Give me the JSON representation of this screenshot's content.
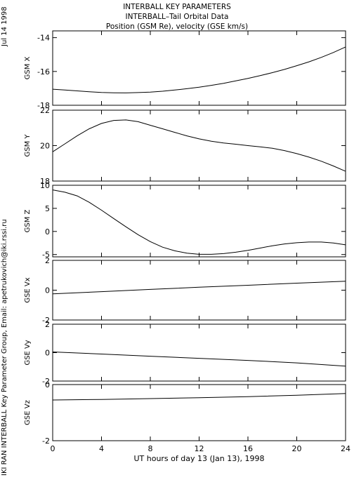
{
  "header": {
    "date": "Jul 14 1998",
    "title_lines": [
      "INTERBALL KEY PARAMETERS",
      "INTERBALL–Tail Orbital Data",
      "Position (GSM Re), velocity (GSE km/s)"
    ]
  },
  "credit": "IKI RAN INTERBALL Key Parameter Group, Email: apetrukovich@iki.rssi.ru",
  "chart_data": {
    "type": "line",
    "x_label": "UT hours of day  13 (Jan 13), 1998",
    "x_ticks": [
      0,
      4,
      8,
      12,
      16,
      20,
      24
    ],
    "xlim": [
      0,
      24
    ],
    "grid": false,
    "panels": [
      {
        "ylabel": "GSM X",
        "ylim": [
          -18,
          -13.6
        ],
        "y_ticks": [
          -18,
          -16,
          -14
        ],
        "series": [
          {
            "x": [
              0,
              1,
              2,
              3,
              4,
              5,
              6,
              7,
              8,
              9,
              10,
              11,
              12,
              13,
              14,
              15,
              16,
              17,
              18,
              19,
              20,
              21,
              22,
              23,
              24
            ],
            "y": [
              -17.05,
              -17.1,
              -17.15,
              -17.2,
              -17.24,
              -17.26,
              -17.27,
              -17.25,
              -17.22,
              -17.17,
              -17.1,
              -17.02,
              -16.93,
              -16.82,
              -16.7,
              -16.56,
              -16.41,
              -16.25,
              -16.07,
              -15.88,
              -15.66,
              -15.43,
              -15.17,
              -14.88,
              -14.55
            ]
          }
        ]
      },
      {
        "ylabel": "GSM Y",
        "ylim": [
          18,
          22
        ],
        "y_ticks": [
          18,
          20,
          22
        ],
        "series": [
          {
            "x": [
              0,
              1,
              2,
              3,
              4,
              5,
              6,
              7,
              8,
              9,
              10,
              11,
              12,
              13,
              14,
              15,
              16,
              17,
              18,
              19,
              20,
              21,
              22,
              23,
              24
            ],
            "y": [
              19.65,
              20.1,
              20.55,
              20.95,
              21.25,
              21.42,
              21.45,
              21.35,
              21.15,
              20.95,
              20.75,
              20.55,
              20.38,
              20.25,
              20.15,
              20.08,
              20.0,
              19.93,
              19.85,
              19.72,
              19.55,
              19.35,
              19.12,
              18.85,
              18.55
            ]
          }
        ]
      },
      {
        "ylabel": "GSM Z",
        "ylim": [
          -5.5,
          10
        ],
        "y_ticks": [
          -5,
          0,
          5,
          10
        ],
        "series": [
          {
            "x": [
              0,
              1,
              2,
              3,
              4,
              5,
              6,
              7,
              8,
              9,
              10,
              11,
              12,
              13,
              14,
              15,
              16,
              17,
              18,
              19,
              20,
              21,
              22,
              23,
              24
            ],
            "y": [
              9.0,
              8.5,
              7.7,
              6.3,
              4.6,
              2.8,
              1.0,
              -0.7,
              -2.2,
              -3.4,
              -4.2,
              -4.7,
              -4.95,
              -4.95,
              -4.8,
              -4.5,
              -4.1,
              -3.6,
              -3.1,
              -2.7,
              -2.45,
              -2.3,
              -2.3,
              -2.5,
              -2.9
            ]
          }
        ]
      },
      {
        "ylabel": "GSE Vx",
        "ylim": [
          -2,
          2
        ],
        "y_ticks": [
          -2,
          0,
          2
        ],
        "series": [
          {
            "x": [
              0,
              4,
              8,
              12,
              16,
              20,
              24
            ],
            "y": [
              -0.25,
              -0.1,
              0.05,
              0.2,
              0.33,
              0.47,
              0.6
            ]
          }
        ]
      },
      {
        "ylabel": "GSE Vy",
        "ylim": [
          -2,
          2
        ],
        "y_ticks": [
          -2,
          0,
          2
        ],
        "series": [
          {
            "x": [
              0,
              4,
              8,
              12,
              16,
              20,
              24
            ],
            "y": [
              0.05,
              -0.1,
              -0.25,
              -0.4,
              -0.55,
              -0.72,
              -0.95
            ]
          }
        ]
      },
      {
        "ylabel": "GSE Vz",
        "ylim": [
          -2,
          0
        ],
        "y_ticks": [
          -2,
          0
        ],
        "series": [
          {
            "x": [
              0,
              4,
              8,
              12,
              16,
              20,
              24
            ],
            "y": [
              -0.55,
              -0.53,
              -0.5,
              -0.47,
              -0.43,
              -0.38,
              -0.32
            ]
          }
        ]
      }
    ]
  }
}
